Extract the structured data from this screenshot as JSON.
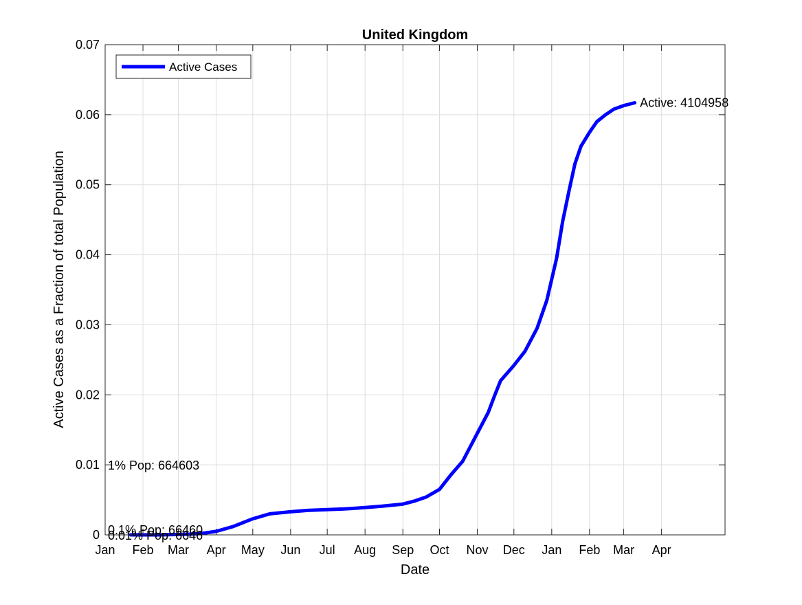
{
  "chart_data": {
    "type": "line",
    "title": "United Kingdom",
    "xlabel": "Date",
    "ylabel": "Active Cases as a Fraction of total Population",
    "xlim": [
      "2020-01-01",
      "2021-05-31"
    ],
    "ylim": [
      0,
      0.07
    ],
    "grid": true,
    "legend_position": "top-left",
    "x_ticks": [
      "2020-01-01",
      "2020-02-01",
      "2020-03-01",
      "2020-04-01",
      "2020-05-01",
      "2020-06-01",
      "2020-07-01",
      "2020-08-01",
      "2020-09-01",
      "2020-10-01",
      "2020-11-01",
      "2020-12-01",
      "2021-01-01",
      "2021-02-01",
      "2021-03-01",
      "2021-04-01"
    ],
    "x_tick_labels": [
      "Jan",
      "Feb",
      "Mar",
      "Apr",
      "May",
      "Jun",
      "Jul",
      "Aug",
      "Sep",
      "Oct",
      "Nov",
      "Dec",
      "Jan",
      "Feb",
      "Mar",
      "Apr"
    ],
    "y_ticks": [
      0,
      0.01,
      0.02,
      0.03,
      0.04,
      0.05,
      0.06,
      0.07
    ],
    "y_tick_labels": [
      "0",
      "0.01",
      "0.02",
      "0.03",
      "0.04",
      "0.05",
      "0.06",
      "0.07"
    ],
    "series": [
      {
        "name": "Active Cases",
        "color": "#0000ff",
        "x": [
          "2020-01-22",
          "2020-02-15",
          "2020-03-10",
          "2020-03-20",
          "2020-04-01",
          "2020-04-15",
          "2020-05-01",
          "2020-05-15",
          "2020-06-01",
          "2020-06-15",
          "2020-07-01",
          "2020-07-15",
          "2020-08-01",
          "2020-08-15",
          "2020-09-01",
          "2020-09-10",
          "2020-09-20",
          "2020-10-01",
          "2020-10-10",
          "2020-10-20",
          "2020-11-01",
          "2020-11-10",
          "2020-11-15",
          "2020-11-20",
          "2020-12-01",
          "2020-12-10",
          "2020-12-20",
          "2020-12-28",
          "2021-01-05",
          "2021-01-10",
          "2021-01-15",
          "2021-01-20",
          "2021-01-25",
          "2021-02-01",
          "2021-02-07",
          "2021-02-14",
          "2021-02-21",
          "2021-03-01",
          "2021-03-10"
        ],
        "values": [
          0.0,
          0.0,
          0.0001,
          0.0002,
          0.0005,
          0.0012,
          0.0023,
          0.003,
          0.0033,
          0.0035,
          0.0036,
          0.0037,
          0.0039,
          0.0041,
          0.0044,
          0.0048,
          0.0054,
          0.0065,
          0.0085,
          0.0105,
          0.0145,
          0.0175,
          0.0198,
          0.022,
          0.0242,
          0.0262,
          0.0295,
          0.0335,
          0.0395,
          0.0448,
          0.049,
          0.053,
          0.0555,
          0.0575,
          0.059,
          0.06,
          0.0608,
          0.0613,
          0.0617
        ]
      }
    ],
    "annotations": [
      {
        "text": "Active: 4104958",
        "x": "2021-03-12",
        "y": 0.0617
      },
      {
        "text": "1% Pop: 664603",
        "x": "2020-01-01",
        "y": 0.0099
      },
      {
        "text": "0.1% Pop: 66460",
        "x": "2020-01-01",
        "y": 0.0007
      },
      {
        "text": "0.01% Pop: 6646",
        "x": "2020-01-01",
        "y": -0.0001
      }
    ]
  }
}
